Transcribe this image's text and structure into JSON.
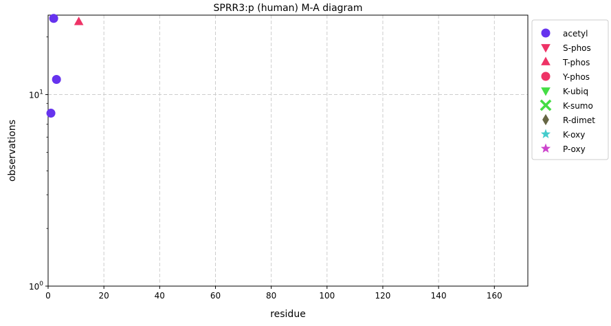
{
  "chart_data": {
    "type": "scatter",
    "title": "SPRR3:p (human) M-A diagram",
    "xlabel": "residue",
    "ylabel": "observations",
    "xlim": [
      0,
      172
    ],
    "ylim": [
      1,
      26
    ],
    "yscale": "log",
    "grid": true,
    "legend_position": "outside-right",
    "x_ticks": [
      0,
      20,
      40,
      60,
      80,
      100,
      120,
      140,
      160
    ],
    "x_tick_labels": [
      "0",
      "20",
      "40",
      "60",
      "80",
      "100",
      "120",
      "140",
      "160"
    ],
    "y_ticks": [
      1,
      10
    ],
    "y_tick_labels": [
      {
        "base": "10",
        "exp": "0"
      },
      {
        "base": "10",
        "exp": "1"
      }
    ],
    "series": [
      {
        "name": "acetyl",
        "marker": "circle",
        "color": "#6633ee",
        "points": [
          {
            "x": 1,
            "y": 8
          },
          {
            "x": 2,
            "y": 25
          },
          {
            "x": 3,
            "y": 12
          }
        ]
      },
      {
        "name": "S-phos",
        "marker": "triangle-down",
        "color": "#ee3366",
        "points": []
      },
      {
        "name": "T-phos",
        "marker": "triangle-up",
        "color": "#ee3366",
        "points": [
          {
            "x": 11,
            "y": 24
          }
        ]
      },
      {
        "name": "Y-phos",
        "marker": "circle",
        "color": "#ee3366",
        "points": []
      },
      {
        "name": "K-ubiq",
        "marker": "triangle-down",
        "color": "#44dd44",
        "points": []
      },
      {
        "name": "K-sumo",
        "marker": "x",
        "color": "#44dd44",
        "points": []
      },
      {
        "name": "R-dimet",
        "marker": "diamond",
        "color": "#666644",
        "points": []
      },
      {
        "name": "K-oxy",
        "marker": "star",
        "color": "#44cccc",
        "points": []
      },
      {
        "name": "P-oxy",
        "marker": "star",
        "color": "#cc44cc",
        "points": []
      }
    ]
  }
}
